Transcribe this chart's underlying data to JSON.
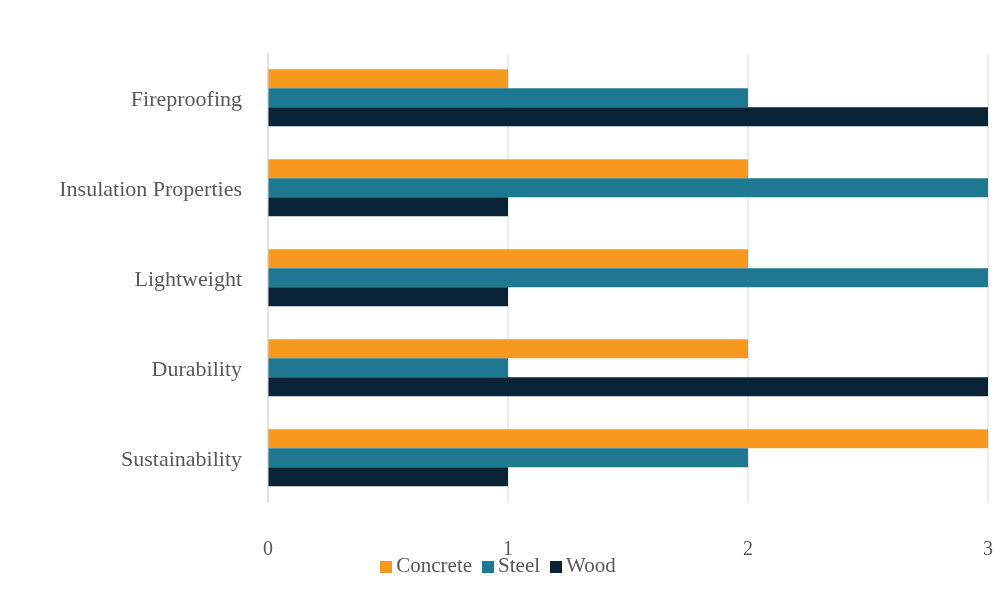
{
  "chart_data": {
    "type": "bar",
    "orientation": "horizontal",
    "categories": [
      "Fireproofing",
      "Insulation Properties",
      "Lightweight",
      "Durability",
      "Sustainability"
    ],
    "series": [
      {
        "name": "Concrete",
        "color": "#f7991f",
        "values": [
          1,
          2,
          2,
          2,
          3
        ]
      },
      {
        "name": "Steel",
        "color": "#1f7891",
        "values": [
          2,
          3,
          3,
          1,
          2
        ]
      },
      {
        "name": "Wood",
        "color": "#0a2437",
        "values": [
          3,
          1,
          1,
          3,
          1
        ]
      }
    ],
    "xlim": [
      0,
      3
    ],
    "xticks": [
      0,
      1,
      2,
      3
    ],
    "grid": "x",
    "legend": "bottom"
  }
}
